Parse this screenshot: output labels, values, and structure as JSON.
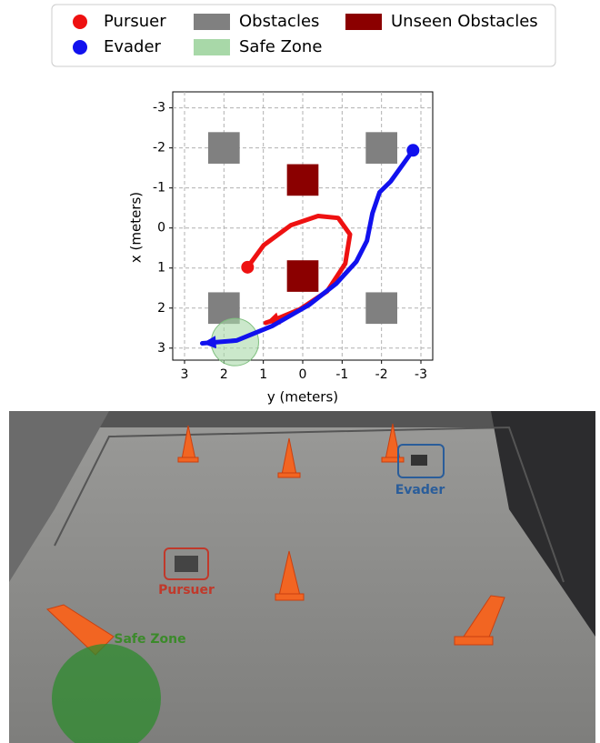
{
  "chart_data": {
    "type": "trajectory",
    "xlabel": "y (meters)",
    "ylabel": "x (meters)",
    "xlim": [
      3.3,
      -3.3
    ],
    "xticks": [
      3,
      2,
      1,
      0,
      -1,
      -2,
      -3
    ],
    "ylim": [
      3.3,
      -3.4
    ],
    "yticks": [
      -3,
      -2,
      -1,
      0,
      1,
      2,
      3
    ],
    "grid": true,
    "series": [
      {
        "name": "Pursuer",
        "color": "#ee1111",
        "x": [
          1.4,
          0.99,
          0.3,
          -0.39,
          -0.9,
          -1.2,
          -1.08,
          -0.62,
          0.07,
          0.76,
          0.94
        ],
        "values": [
          0.98,
          0.43,
          -0.07,
          -0.3,
          -0.25,
          0.16,
          0.89,
          1.58,
          2.03,
          2.31,
          2.37
        ]
      },
      {
        "name": "Evader",
        "color": "#1111ee",
        "x": [
          -2.8,
          -2.23,
          -1.95,
          -1.77,
          -1.63,
          -1.36,
          -0.85,
          -0.16,
          0.76,
          1.68,
          2.55
        ],
        "values": [
          -1.94,
          -1.16,
          -0.89,
          -0.37,
          0.32,
          0.84,
          1.39,
          1.92,
          2.44,
          2.81,
          2.88
        ]
      }
    ],
    "obstacles": {
      "name": "Obstacles",
      "color": "#808080",
      "size": 0.8,
      "x": [
        2,
        -2,
        2,
        -2
      ],
      "values": [
        -2,
        -2,
        2,
        2
      ]
    },
    "unseen_obstacles": {
      "name": "Unseen Obstacles",
      "color": "#8b0000",
      "size": 0.8,
      "x": [
        0,
        0
      ],
      "values": [
        -1.2,
        1.2
      ]
    },
    "safe_zone": {
      "name": "Safe Zone",
      "color": "#a8d8a8",
      "radius": 0.6,
      "x": [
        1.72
      ],
      "values": [
        2.85
      ]
    }
  },
  "photo": {
    "labels": [
      "Evader",
      "Pursuer",
      "Safe Zone"
    ]
  }
}
